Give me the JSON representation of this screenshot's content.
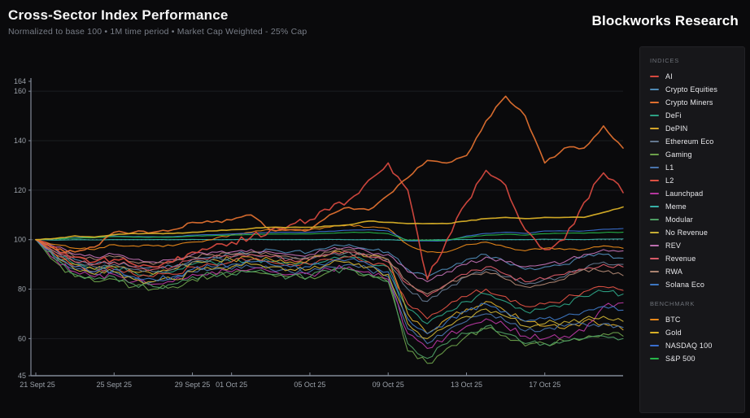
{
  "header": {
    "title": "Cross-Sector Index Performance",
    "subtitle": "Normalized to base 100 • 1M time period • Market Cap Weighted - 25% Cap",
    "brand": "Blockworks Research"
  },
  "legend": {
    "indices_label": "INDICES",
    "benchmark_label": "BENCHMARK"
  },
  "chart_data": {
    "type": "line",
    "title": "Cross-Sector Index Performance",
    "normalization": "Normalized to base 100",
    "time_period": "1M",
    "weighting": "Market Cap Weighted - 25% Cap",
    "ylim": [
      45,
      164
    ],
    "y_ticks": [
      45,
      60,
      80,
      100,
      120,
      140,
      160,
      164
    ],
    "y_gridlines": [
      60,
      80,
      100,
      120,
      140,
      160
    ],
    "baseline": 100,
    "x_days_total": 30,
    "x_ticks": [
      {
        "label": "21 Sept 25",
        "day": 0
      },
      {
        "label": "25 Sept 25",
        "day": 4
      },
      {
        "label": "29 Sept 25",
        "day": 8
      },
      {
        "label": "01 Oct 25",
        "day": 10
      },
      {
        "label": "05 Oct 25",
        "day": 14
      },
      {
        "label": "09 Oct 25",
        "day": 18
      },
      {
        "label": "13 Oct 25",
        "day": 22
      },
      {
        "label": "17 Oct 25",
        "day": 26
      }
    ],
    "series": [
      {
        "name": "AI",
        "group": "indices",
        "color": "#d6493f",
        "noise": 1.5,
        "values": [
          100,
          97,
          93,
          91,
          92,
          90,
          89,
          91,
          95,
          97,
          99,
          101,
          104,
          106,
          108,
          112,
          116,
          124,
          131,
          120,
          84,
          100,
          115,
          128,
          122,
          104,
          96,
          100,
          115,
          127,
          119
        ]
      },
      {
        "name": "Crypto Equities",
        "group": "indices",
        "color": "#4f8ab5",
        "noise": 0.8,
        "values": [
          100,
          96,
          92,
          90,
          91,
          89,
          89,
          89,
          92,
          93,
          94,
          95,
          96,
          95,
          95,
          97,
          98,
          96,
          95,
          88,
          85,
          88,
          92,
          94,
          91,
          88,
          89,
          90,
          93,
          94,
          92.5
        ]
      },
      {
        "name": "Crypto Miners",
        "group": "indices",
        "color": "#e0702f",
        "noise": 0.6,
        "values": [
          100,
          96,
          95,
          97,
          103,
          103,
          103,
          104,
          107,
          107,
          108,
          110,
          104,
          104,
          104,
          110,
          113,
          112,
          118,
          125,
          132,
          131,
          134,
          148,
          158,
          150,
          131,
          137,
          137,
          146,
          137
        ]
      },
      {
        "name": "DeFi",
        "group": "indices",
        "color": "#2da184",
        "noise": 1.2,
        "values": [
          100,
          94,
          90,
          88,
          89,
          87,
          86,
          87,
          90,
          91,
          91,
          92,
          91,
          90,
          90,
          92,
          93,
          91,
          89,
          72,
          66,
          71,
          75,
          78,
          75,
          71,
          72,
          74,
          77,
          79,
          78
        ]
      },
      {
        "name": "DePIN",
        "group": "indices",
        "color": "#d4a62a",
        "noise": 1.2,
        "values": [
          100,
          94,
          90,
          88,
          89,
          87,
          86,
          88,
          91,
          92,
          92,
          93,
          92,
          91,
          92,
          94,
          95,
          93,
          92,
          70,
          62,
          68,
          72,
          75,
          71,
          67,
          65,
          64,
          67,
          66,
          63.5
        ]
      },
      {
        "name": "Ethereum Eco",
        "group": "indices",
        "color": "#64788f",
        "noise": 1.0,
        "values": [
          100,
          95,
          91,
          89,
          90,
          88,
          87,
          88,
          91,
          92,
          93,
          94,
          93,
          92,
          92,
          94,
          95,
          93,
          92,
          80,
          75,
          80,
          85,
          88,
          85,
          82,
          84,
          85,
          88,
          91,
          90
        ]
      },
      {
        "name": "Gaming",
        "group": "indices",
        "color": "#6ca04a",
        "noise": 1.4,
        "values": [
          100,
          91,
          85,
          83,
          84,
          81,
          80,
          81,
          84,
          85,
          86,
          87,
          86,
          85,
          85,
          87,
          88,
          86,
          83,
          55,
          50,
          56,
          61,
          64,
          61,
          57,
          58,
          59,
          60,
          62,
          61
        ]
      },
      {
        "name": "L1",
        "group": "indices",
        "color": "#4a74ad",
        "noise": 1.2,
        "values": [
          100,
          93,
          88,
          86,
          87,
          84,
          83,
          84,
          87,
          88,
          88,
          89,
          88,
          87,
          87,
          89,
          90,
          88,
          85,
          64,
          58,
          63,
          67,
          70,
          67,
          63,
          64,
          65,
          66,
          66,
          64.5
        ]
      },
      {
        "name": "L2",
        "group": "indices",
        "color": "#dd5143",
        "noise": 1.2,
        "values": [
          100,
          94,
          89,
          87,
          88,
          86,
          85,
          86,
          89,
          90,
          91,
          92,
          91,
          90,
          90,
          92,
          93,
          91,
          89,
          74,
          68,
          73,
          77,
          80,
          77,
          73,
          74,
          76,
          79,
          81,
          79.5
        ]
      },
      {
        "name": "Launchpad",
        "group": "indices",
        "color": "#b5379f",
        "noise": 1.3,
        "values": [
          100,
          92,
          87,
          85,
          86,
          83,
          82,
          83,
          86,
          87,
          87,
          88,
          87,
          86,
          86,
          88,
          89,
          87,
          84,
          62,
          56,
          61,
          65,
          68,
          65,
          61,
          60,
          61,
          63,
          73,
          74.5
        ]
      },
      {
        "name": "Meme",
        "group": "indices",
        "color": "#38b2a8",
        "noise": 0.05,
        "values": [
          100,
          99.8,
          100,
          99.9,
          100,
          100,
          100,
          100,
          100.1,
          100,
          100,
          100.2,
          100,
          100,
          100,
          100.1,
          100,
          100,
          100,
          99.6,
          99.8,
          100,
          100.1,
          100,
          100,
          100,
          100.2,
          100.1,
          100,
          100.2,
          100.3
        ]
      },
      {
        "name": "Modular",
        "group": "indices",
        "color": "#4e9e63",
        "noise": 1.3,
        "values": [
          100,
          92,
          86,
          84,
          85,
          82,
          81,
          82,
          85,
          86,
          86,
          87,
          86,
          85,
          85,
          87,
          88,
          86,
          83,
          58,
          52,
          58,
          62,
          65,
          62,
          58,
          58,
          59,
          60,
          61,
          60
        ]
      },
      {
        "name": "No Revenue",
        "group": "indices",
        "color": "#c7ae35",
        "noise": 1.3,
        "values": [
          100,
          93,
          88,
          86,
          87,
          84,
          83,
          84,
          87,
          88,
          89,
          90,
          89,
          88,
          88,
          90,
          91,
          89,
          86,
          66,
          60,
          65,
          69,
          72,
          69,
          65,
          66,
          67,
          68,
          69,
          67
        ]
      },
      {
        "name": "REV",
        "group": "indices",
        "color": "#bd6fb0",
        "noise": 0.8,
        "values": [
          100,
          97,
          94,
          93,
          94,
          92,
          91,
          92,
          94,
          95,
          95,
          96,
          95,
          94,
          94,
          96,
          97,
          95,
          94,
          87,
          83,
          87,
          90,
          93,
          91,
          89,
          90,
          91,
          94,
          96,
          95.5
        ]
      },
      {
        "name": "Revenue",
        "group": "indices",
        "color": "#d85a67",
        "noise": 1.0,
        "values": [
          100,
          95,
          91,
          90,
          91,
          89,
          88,
          89,
          92,
          93,
          93,
          94,
          93,
          92,
          92,
          94,
          95,
          93,
          91,
          82,
          77,
          82,
          86,
          89,
          86,
          83,
          84,
          86,
          88,
          90,
          89
        ]
      },
      {
        "name": "RWA",
        "group": "indices",
        "color": "#ab8471",
        "noise": 0.9,
        "values": [
          100,
          96,
          93,
          92,
          93,
          91,
          90,
          91,
          93,
          94,
          94,
          95,
          94,
          93,
          93,
          95,
          96,
          94,
          92,
          83,
          78,
          82,
          85,
          87,
          84,
          81,
          82,
          84,
          88,
          87,
          85.5
        ]
      },
      {
        "name": "Solana Eco",
        "group": "indices",
        "color": "#3d77c2",
        "noise": 1.2,
        "values": [
          100,
          93,
          89,
          87,
          88,
          85,
          84,
          85,
          88,
          89,
          90,
          91,
          90,
          89,
          89,
          91,
          92,
          90,
          87,
          68,
          62,
          67,
          71,
          74,
          71,
          67,
          68,
          69,
          71,
          73,
          71.5
        ]
      },
      {
        "name": "BTC",
        "group": "benchmark",
        "color": "#e8881a",
        "noise": 0.4,
        "values": [
          100,
          98,
          96.5,
          96,
          98,
          97.5,
          97.5,
          97.5,
          99,
          100,
          102,
          103,
          104,
          104,
          104,
          105,
          106,
          105,
          104.5,
          98,
          95,
          95,
          98,
          99,
          97,
          95.5,
          96.5,
          96,
          96,
          97.5,
          96.5
        ]
      },
      {
        "name": "Gold",
        "group": "benchmark",
        "color": "#d9b027",
        "noise": 0.15,
        "values": [
          100,
          100.5,
          101.5,
          101,
          102,
          102.5,
          102.5,
          102.5,
          103,
          103.5,
          104,
          104.5,
          105,
          105,
          105,
          105.5,
          106,
          107.5,
          107,
          106.5,
          106.5,
          106.5,
          107.5,
          108.5,
          109,
          108.5,
          109,
          109,
          109,
          111,
          113.2
        ]
      },
      {
        "name": "NASDAQ 100",
        "group": "benchmark",
        "color": "#3a6fd0",
        "noise": 0.1,
        "values": [
          100,
          100.4,
          100.8,
          101,
          101.5,
          101.2,
          101.2,
          101.2,
          101.8,
          102,
          102.3,
          102.6,
          103,
          103,
          103,
          103.4,
          103.8,
          104,
          103.5,
          99.5,
          99.5,
          99.5,
          101.5,
          102.5,
          103,
          102.5,
          103.5,
          103.5,
          103.5,
          104.2,
          104.5
        ]
      },
      {
        "name": "S&P 500",
        "group": "benchmark",
        "color": "#27b64a",
        "noise": 0.1,
        "values": [
          100,
          100.3,
          100.6,
          100.8,
          101.2,
          101,
          101,
          101,
          101.4,
          101.6,
          101.8,
          102,
          102.3,
          102.3,
          102.3,
          102.6,
          102.9,
          103,
          102.4,
          99.8,
          99.8,
          99.8,
          101,
          101.8,
          102.2,
          101.8,
          102.4,
          102.6,
          102.6,
          102.9,
          103
        ]
      }
    ]
  }
}
